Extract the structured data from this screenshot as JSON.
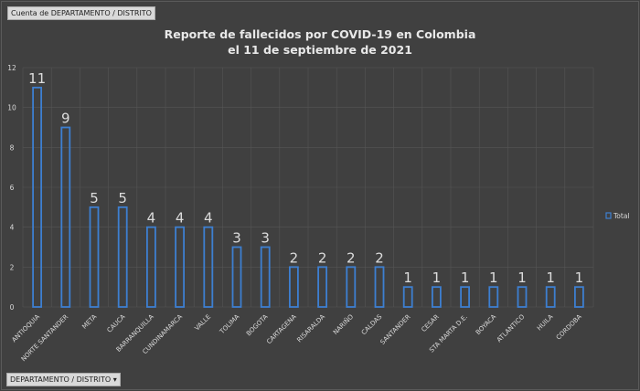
{
  "field_buttons": {
    "values_field": "Cuenta de DEPARTAMENTO / DISTRITO",
    "axis_field": "DEPARTAMENTO / DISTRITO",
    "axis_field_icon": "dropdown-arrow-icon"
  },
  "chart_data": {
    "type": "bar",
    "title": "Reporte de fallecidos por COVID-19 en Colombia",
    "subtitle": "el 11 de septiembre de 2021",
    "categories": [
      "ANTIOQUIA",
      "NORTE SANTANDER",
      "META",
      "CAUCA",
      "BARRANQUILLA",
      "CUNDINAMARCA",
      "VALLE",
      "TOLIMA",
      "BOGOTA",
      "CARTAGENA",
      "RISARALDA",
      "NARIÑO",
      "CALDAS",
      "SANTANDER",
      "CESAR",
      "STA MARTA D.E.",
      "BOYACA",
      "ATLANTICO",
      "HUILA",
      "CORDOBA"
    ],
    "series": [
      {
        "name": "Total",
        "values": [
          11,
          9,
          5,
          5,
          4,
          4,
          4,
          3,
          3,
          2,
          2,
          2,
          2,
          1,
          1,
          1,
          1,
          1,
          1,
          1
        ]
      }
    ],
    "ylim": [
      0,
      12
    ],
    "yticks": [
      0,
      2,
      4,
      6,
      8,
      10,
      12
    ],
    "grid": true,
    "legend": "right",
    "data_labels": true,
    "colors": {
      "bar_outline": "#3d7fd1",
      "background": "#404040",
      "text": "#d9d9d9",
      "grid": "#555555"
    }
  }
}
